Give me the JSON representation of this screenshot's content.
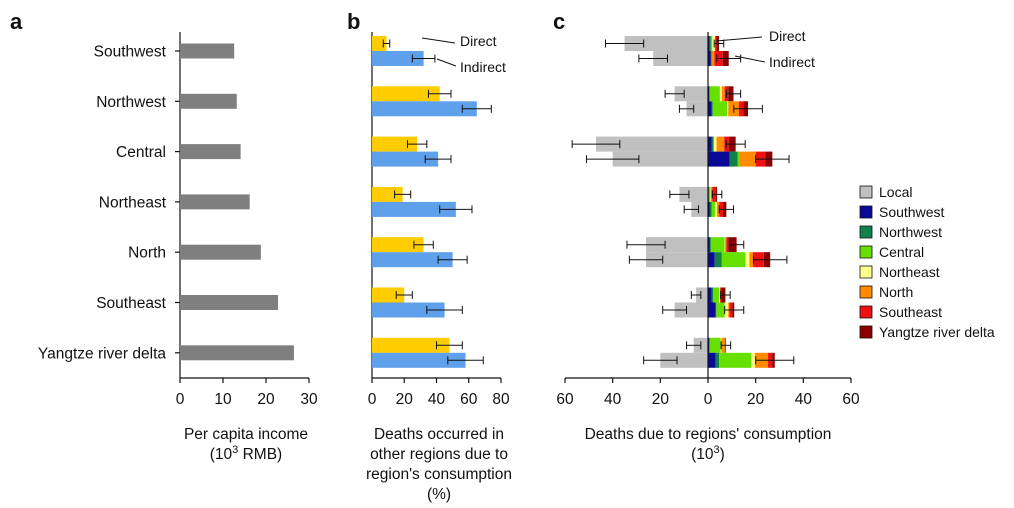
{
  "categories": [
    "Southwest",
    "Northwest",
    "Central",
    "Northeast",
    "North",
    "Southeast",
    "Yangtze river delta"
  ],
  "chart_data": [
    {
      "panel": "a",
      "type": "bar",
      "orientation": "horizontal",
      "xlabel_lines": [
        "Per capita income",
        "(10",
        "3",
        " RMB)"
      ],
      "xticks": [
        0,
        10,
        20,
        30
      ],
      "xlim": [
        0,
        30
      ],
      "color": "#7f7f7f",
      "values": [
        12.6,
        13.2,
        14.1,
        16.2,
        18.8,
        22.8,
        26.5
      ]
    },
    {
      "panel": "b",
      "type": "bar",
      "orientation": "horizontal",
      "xlabel_lines": [
        "Deaths occurred in",
        "other regions due to",
        "region's consumption",
        "(%)"
      ],
      "xticks": [
        0,
        20,
        40,
        60,
        80
      ],
      "xlim": [
        0,
        80
      ],
      "annotations": {
        "direct": "Direct",
        "indirect": "Indirect"
      },
      "series": [
        {
          "name": "Direct",
          "color": "#ffcc00",
          "values": [
            9,
            42,
            28,
            19,
            32,
            20,
            48
          ],
          "err": [
            2,
            7,
            6,
            5,
            6,
            5,
            8
          ]
        },
        {
          "name": "Indirect",
          "color": "#5fa0ea",
          "values": [
            32,
            65,
            41,
            52,
            50,
            45,
            58
          ],
          "err": [
            7,
            9,
            8,
            10,
            9,
            11,
            11
          ]
        }
      ]
    },
    {
      "panel": "c",
      "type": "bar",
      "orientation": "horizontal",
      "stacked": true,
      "xlabel_lines": [
        "Deaths due to regions' consumption",
        "(10",
        "3",
        ")"
      ],
      "xticks": [
        60,
        40,
        20,
        0,
        20,
        40,
        60
      ],
      "xlim": [
        -60,
        60
      ],
      "annotations": {
        "direct": "Direct",
        "indirect": "Indirect"
      },
      "legend_labels": [
        "Local",
        "Southwest",
        "Northwest",
        "Central",
        "Northeast",
        "North",
        "Southeast",
        "Yangtze river delta"
      ],
      "legend_colors": [
        "#c0c0c0",
        "#0a0a96",
        "#12804a",
        "#66e000",
        "#ffff8c",
        "#ff8c00",
        "#ee1111",
        "#8b0000"
      ],
      "legend_placement": "right",
      "direct": {
        "local": [
          35,
          14,
          47,
          12,
          26,
          5,
          6
        ],
        "local_err": [
          8,
          4,
          10,
          4,
          8,
          2,
          3
        ],
        "stacks": [
          [
            0,
            0.6,
            0.6,
            0.6,
            1.2,
            0,
            0.6,
            1
          ],
          [
            0,
            0.5,
            0.3,
            4.2,
            0.8,
            1.2,
            1.5,
            2.2
          ],
          [
            0,
            1.6,
            0.8,
            0,
            1.2,
            3.2,
            2,
            2.8
          ],
          [
            0,
            0.2,
            0.2,
            0.6,
            0.2,
            0.6,
            1.4,
            0.6
          ],
          [
            0,
            0.8,
            0.4,
            5.8,
            0.2,
            0.5,
            0.8,
            3.5
          ],
          [
            0,
            1.5,
            0.6,
            2.6,
            0.4,
            0,
            0.4,
            1.8
          ],
          [
            0,
            0.5,
            0.3,
            4.5,
            0.3,
            1.5,
            0.4,
            0
          ]
        ],
        "err": [
          2,
          3,
          4,
          2,
          3,
          2,
          2
        ]
      },
      "indirect": {
        "local": [
          23,
          9,
          40,
          7,
          26,
          14,
          20
        ],
        "local_err": [
          6,
          3,
          11,
          3,
          7,
          5,
          7
        ],
        "stacks": [
          [
            0,
            1.2,
            0.3,
            0,
            0,
            1.2,
            3.5,
            2.5
          ],
          [
            0,
            1.5,
            0.5,
            6,
            0.5,
            4.5,
            1.8,
            2
          ],
          [
            0,
            9,
            3.5,
            0.5,
            0,
            7,
            4,
            3
          ],
          [
            0,
            0.8,
            0.8,
            1.4,
            0.7,
            1,
            1.6,
            1.4
          ],
          [
            0,
            2.8,
            3,
            10,
            1.6,
            1.5,
            4.5,
            2.7
          ],
          [
            0,
            3.2,
            0.3,
            3.5,
            1.5,
            0.5,
            1.2,
            0.8
          ],
          [
            0,
            3.2,
            1.5,
            13.5,
            1.5,
            5.5,
            1.8,
            1
          ]
        ],
        "err": [
          5,
          6,
          7,
          3,
          7,
          4,
          8
        ]
      }
    }
  ]
}
